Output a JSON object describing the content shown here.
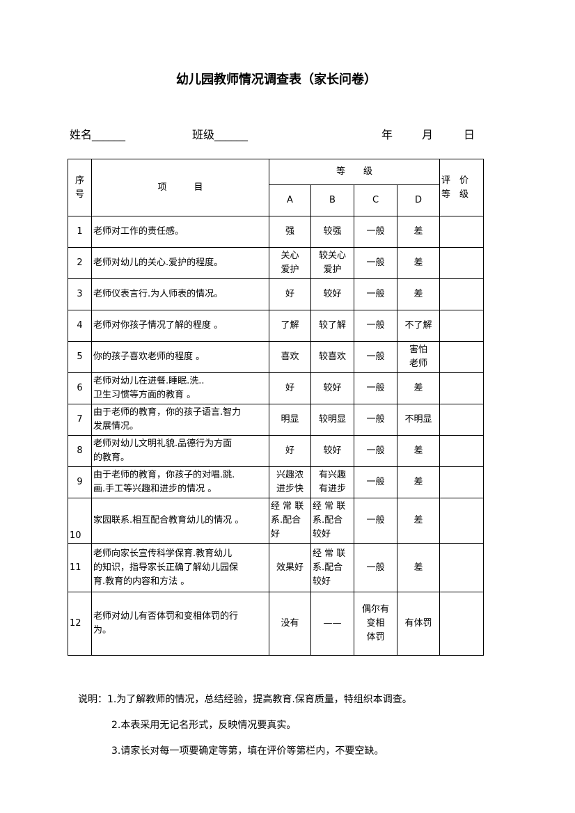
{
  "title": "幼儿园教师情况调查表（家长问卷）",
  "header": {
    "name_label": "姓名______",
    "class_label": "班级______",
    "year": "年",
    "month": "月",
    "day": "日"
  },
  "table": {
    "col_seq": "序\n号",
    "col_item": "项　　　目",
    "col_grade": "等　　级",
    "col_eval": "评　价\n等　级",
    "grades": [
      "A",
      "B",
      "C",
      "D"
    ],
    "rows": [
      {
        "seq": "1",
        "item": "老师对工作的责任感。",
        "a": "强",
        "b": "较强",
        "c": "一般",
        "d": "差"
      },
      {
        "seq": "2",
        "item": "老师对幼儿的关心.爱护的程度。",
        "a": "关心\n爱护",
        "b": "较关心\n爱护",
        "c": "一般",
        "d": "差"
      },
      {
        "seq": "3",
        "item": "老师仪表言行.为人师表的情况。",
        "a": "好",
        "b": "较好",
        "c": "一般",
        "d": "差"
      },
      {
        "seq": "4",
        "item": "老师对你孩子情况了解的程度 。",
        "a": "了解",
        "b": "较了解",
        "c": "一般",
        "d": "不了解"
      },
      {
        "seq": "5",
        "item": "你的孩子喜欢老师的程度 。",
        "a": "喜欢",
        "b": "较喜欢",
        "c": "一般",
        "d": "害怕\n老师"
      },
      {
        "seq": "6",
        "item": "老师对幼儿在进餐.睡眠.洗..\n卫生习惯等方面的教育 。",
        "a": "好",
        "b": "较好",
        "c": "一般",
        "d": "差"
      },
      {
        "seq": "7",
        "item": "由于老师的教育，你的孩子语言.智力\n发展情况。",
        "a": "明显",
        "b": "较明显",
        "c": "一般",
        "d": "不明显"
      },
      {
        "seq": "8",
        "item": "老师对幼儿文明礼貌.品德行为方面\n的教育。",
        "a": "好",
        "b": "较好",
        "c": "一般",
        "d": "差"
      },
      {
        "seq": "9",
        "item": "由于老师的教育，你孩子的对唱.跳.\n画.手工等兴趣和进步的情况 。",
        "a": "兴趣浓\n进步快",
        "b": "有兴趣\n有进步",
        "c": "一般",
        "d": "差"
      },
      {
        "seq": "10",
        "item": "家园联系.相互配合教育幼儿的情况 。",
        "a": "经 常 联\n系.配合\n好",
        "b": "经 常 联\n系.配合\n较好",
        "c": "一般",
        "d": "差"
      },
      {
        "seq": "11",
        "item": "老师向家长宣传科学保育.教育幼儿\n的知识，指导家长正确了解幼儿园保\n育.教育的内容和方法 。",
        "a": "效果好",
        "b": "经 常 联\n系.配合\n较好",
        "c": "一般",
        "d": "差"
      },
      {
        "seq": "12",
        "item": "老师对幼儿有否体罚和变相体罚的行\n为。",
        "a": "没有",
        "b": "——",
        "c": "偶尔有\n变相\n体罚",
        "d": "有体罚"
      }
    ]
  },
  "notes": [
    "说明：1.为了解教师的情况，总结经验，提高教育.保育质量，特组织本调查。",
    "2.本表采用无记名形式，反映情况要真实。",
    "3.请家长对每一项要确定等第，填在评价等第栏内，不要空缺。"
  ]
}
